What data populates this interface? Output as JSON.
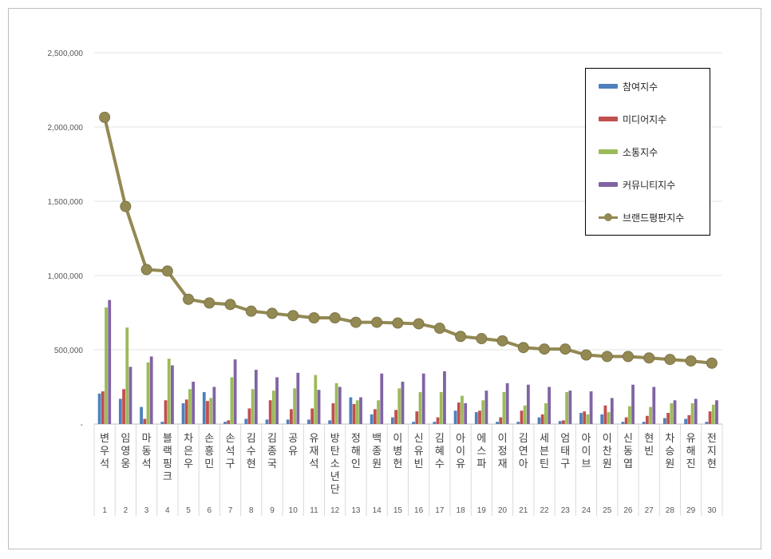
{
  "chart_data": {
    "type": "bar",
    "y_ticks": [
      "-",
      "500,000",
      "1,000,000",
      "1,500,000",
      "2,000,000",
      "2,500,000"
    ],
    "ylim": [
      0,
      2500000
    ],
    "legend_position": "top-right",
    "categories": [
      "변우석",
      "임영웅",
      "마동석",
      "블랙핑크",
      "차은우",
      "손흥민",
      "손석구",
      "김수현",
      "김종국",
      "공유",
      "유재석",
      "방탄소년단",
      "정해인",
      "백종원",
      "이병헌",
      "신유빈",
      "김혜수",
      "아이유",
      "에스파",
      "이정재",
      "김연아",
      "세븐틴",
      "엄태구",
      "아이브",
      "이찬원",
      "신동엽",
      "현빈",
      "차승원",
      "유해진",
      "전지현"
    ],
    "ranks": [
      "1",
      "2",
      "3",
      "4",
      "5",
      "6",
      "7",
      "8",
      "9",
      "10",
      "11",
      "12",
      "13",
      "14",
      "15",
      "16",
      "17",
      "18",
      "19",
      "20",
      "21",
      "22",
      "23",
      "24",
      "25",
      "26",
      "27",
      "28",
      "29",
      "30"
    ],
    "series": [
      {
        "name": "참여지수",
        "type": "bar",
        "color": "#4F81BD",
        "values": [
          205000,
          170000,
          115000,
          15000,
          140000,
          215000,
          15000,
          35000,
          30000,
          30000,
          30000,
          25000,
          180000,
          65000,
          45000,
          15000,
          15000,
          90000,
          80000,
          15000,
          15000,
          45000,
          20000,
          75000,
          65000,
          15000,
          15000,
          40000,
          35000,
          15000
        ]
      },
      {
        "name": "미디어지수",
        "type": "bar",
        "color": "#C0504D",
        "values": [
          220000,
          235000,
          35000,
          160000,
          165000,
          155000,
          25000,
          105000,
          160000,
          100000,
          105000,
          140000,
          135000,
          100000,
          95000,
          85000,
          45000,
          145000,
          90000,
          45000,
          90000,
          65000,
          25000,
          85000,
          125000,
          45000,
          55000,
          75000,
          60000,
          85000
        ]
      },
      {
        "name": "소통지수",
        "type": "bar",
        "color": "#9BBB59",
        "values": [
          785000,
          650000,
          415000,
          440000,
          235000,
          175000,
          315000,
          235000,
          225000,
          240000,
          330000,
          275000,
          160000,
          160000,
          240000,
          215000,
          215000,
          190000,
          160000,
          215000,
          125000,
          140000,
          215000,
          65000,
          80000,
          120000,
          115000,
          140000,
          140000,
          130000
        ]
      },
      {
        "name": "커뮤니티지수",
        "type": "bar",
        "color": "#8064A2",
        "values": [
          835000,
          385000,
          455000,
          395000,
          285000,
          250000,
          435000,
          365000,
          315000,
          345000,
          230000,
          250000,
          180000,
          340000,
          285000,
          340000,
          355000,
          140000,
          225000,
          275000,
          265000,
          250000,
          225000,
          220000,
          175000,
          265000,
          250000,
          160000,
          170000,
          160000
        ]
      },
      {
        "name": "브랜드평판지수",
        "type": "line",
        "color": "#938953",
        "values": [
          2065000,
          1465000,
          1040000,
          1030000,
          840000,
          815000,
          805000,
          760000,
          745000,
          730000,
          715000,
          715000,
          685000,
          685000,
          680000,
          675000,
          645000,
          590000,
          575000,
          560000,
          515000,
          505000,
          505000,
          465000,
          455000,
          455000,
          445000,
          435000,
          425000,
          410000
        ]
      }
    ]
  }
}
